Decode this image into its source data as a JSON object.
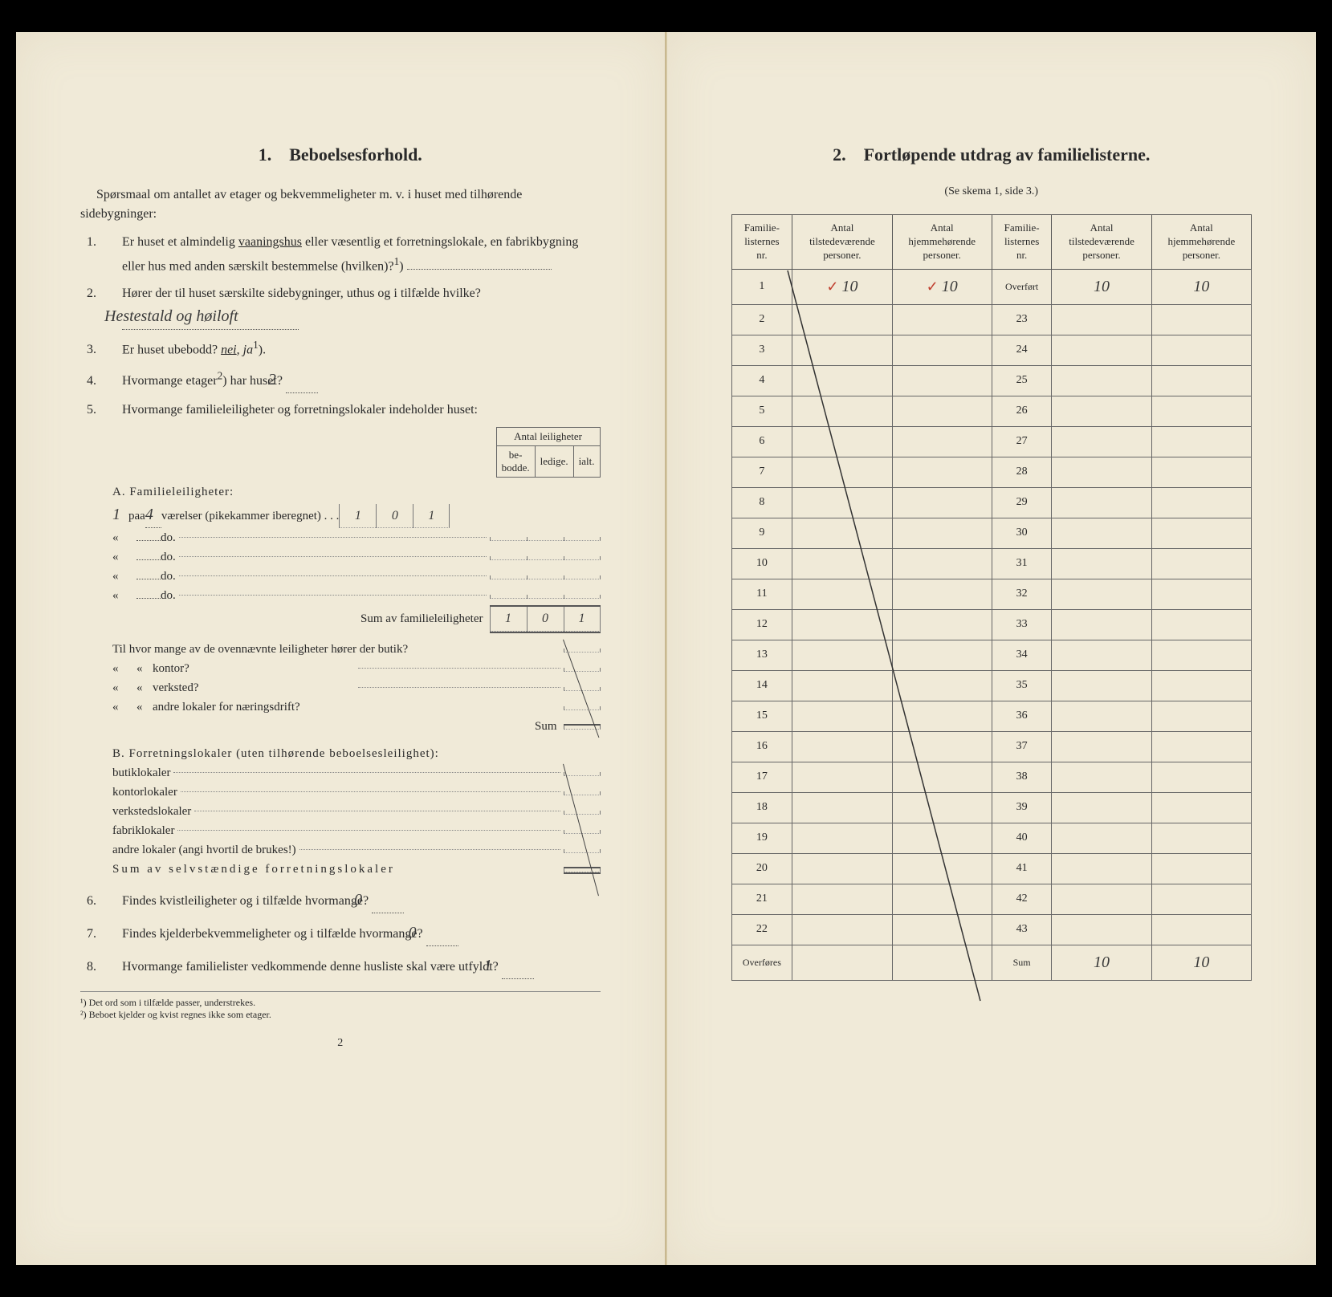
{
  "left": {
    "section_number": "1.",
    "section_title": "Beboelsesforhold.",
    "intro": "Spørsmaal om antallet av etager og bekvemmeligheter m. v. i huset med tilhørende sidebygninger:",
    "q1": {
      "num": "1.",
      "text_a": "Er huset et almindelig ",
      "vaaningshus": "vaaningshus",
      "text_b": " eller væsentlig et forretningslokale, en fabrikbygning eller hus med anden særskilt bestemmelse (hvilken)?",
      "sup": "1"
    },
    "q2": {
      "num": "2.",
      "text": "Hører der til huset særskilte sidebygninger, uthus og i tilfælde hvilke?",
      "answer": "Hestestald og høiloft"
    },
    "q3": {
      "num": "3.",
      "text": "Er huset ubebodd?",
      "nei": "nei",
      "ja": "ja",
      "sup": "1"
    },
    "q4": {
      "num": "4.",
      "text_a": "Hvormange etager",
      "sup": "2",
      "text_b": ") har huset?",
      "answer": "2"
    },
    "q5": {
      "num": "5.",
      "text": "Hvormange familieleiligheter og forretningslokaler indeholder huset:"
    },
    "mini_header": {
      "top": "Antal leiligheter",
      "bebodde": "be-\nbodde.",
      "ledige": "ledige.",
      "ialt": "ialt."
    },
    "sectionA": {
      "label": "A. Familieleiligheter:",
      "count": "1",
      "paa": "paa",
      "rooms": "4",
      "vaerelser": "værelser (pikekammer iberegnet) . . .",
      "do": "do.",
      "sum_label": "Sum av familieleiligheter",
      "row1": {
        "bebodde": "1",
        "ledige": "0",
        "ialt": "1"
      },
      "sum": {
        "bebodde": "1",
        "ledige": "0",
        "ialt": "1"
      },
      "extra_q": "Til hvor mange av de ovennævnte leiligheter hører der butik?",
      "extra_items": [
        "kontor?",
        "verksted?",
        "andre lokaler for næringsdrift?"
      ],
      "extra_sum": "Sum"
    },
    "sectionB": {
      "label": "B. Forretningslokaler (uten tilhørende beboelsesleilighet):",
      "items": [
        "butiklokaler",
        "kontorlokaler",
        "verkstedslokaler",
        "fabriklokaler",
        "andre lokaler (angi hvortil de brukes!)"
      ],
      "sum_label": "Sum av selvstændige forretningslokaler"
    },
    "q6": {
      "num": "6.",
      "text": "Findes kvistleiligheter og i tilfælde hvormange?",
      "answer": "0"
    },
    "q7": {
      "num": "7.",
      "text": "Findes kjelderbekvemmeligheter og i tilfælde hvormange?",
      "answer": "0"
    },
    "q8": {
      "num": "8.",
      "text": "Hvormange familielister vedkommende denne husliste skal være utfyldt?",
      "answer": "1"
    },
    "footnote1": "¹) Det ord som i tilfælde passer, understrekes.",
    "footnote2": "²) Beboet kjelder og kvist regnes ikke som etager.",
    "page_num": "2"
  },
  "right": {
    "section_number": "2.",
    "section_title": "Fortløpende utdrag av familielisterne.",
    "subtitle": "(Se skema 1, side 3.)",
    "headers": {
      "col1": "Familie-\nlisternes\nnr.",
      "col2": "Antal\ntilstedeværende\npersoner.",
      "col3": "Antal\nhjemmehørende\npersoner.",
      "col4": "Familie-\nlisternes\nnr.",
      "col5": "Antal\ntilstedeværende\npersoner.",
      "col6": "Antal\nhjemmehørende\npersoner."
    },
    "overfort": "Overført",
    "overfort_vals": {
      "a": "10",
      "b": "10"
    },
    "row1": {
      "nr": "1",
      "a": "10",
      "b": "10"
    },
    "left_nrs": [
      "1",
      "2",
      "3",
      "4",
      "5",
      "6",
      "7",
      "8",
      "9",
      "10",
      "11",
      "12",
      "13",
      "14",
      "15",
      "16",
      "17",
      "18",
      "19",
      "20",
      "21",
      "22"
    ],
    "right_nrs": [
      "23",
      "24",
      "25",
      "26",
      "27",
      "28",
      "29",
      "30",
      "31",
      "32",
      "33",
      "34",
      "35",
      "36",
      "37",
      "38",
      "39",
      "40",
      "41",
      "42",
      "43"
    ],
    "overfores": "Overføres",
    "sum_label": "Sum",
    "sum_vals": {
      "a": "10",
      "b": "10"
    }
  },
  "colors": {
    "paper": "#f0ead8",
    "ink": "#2a2a2a",
    "red": "#c04030",
    "border": "#666"
  }
}
